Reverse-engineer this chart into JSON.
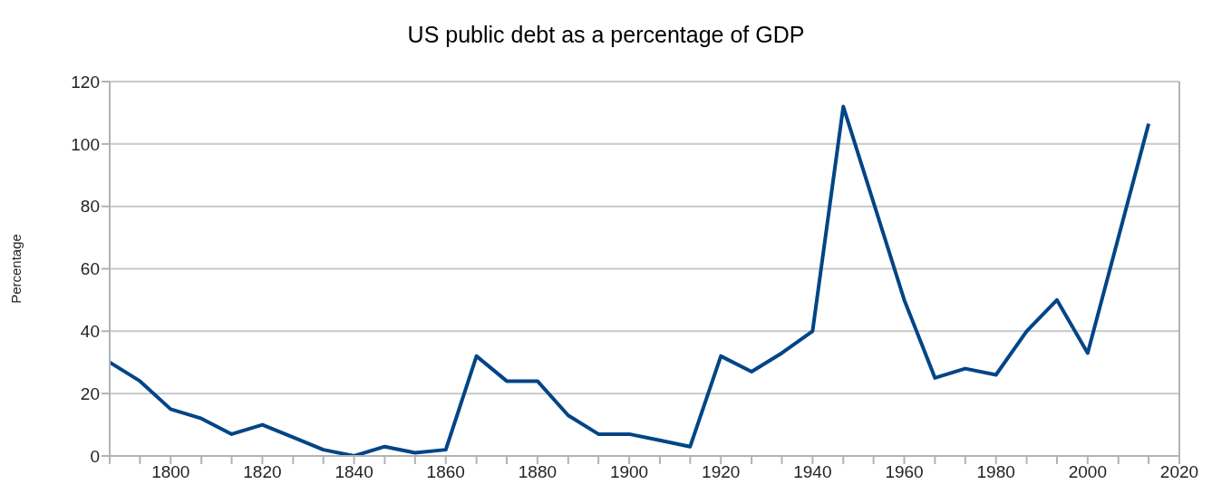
{
  "chart_data": {
    "type": "line",
    "title": "US public debt as a percentage of GDP",
    "ylabel": "Percentage",
    "x": [
      1786.7,
      1793.3,
      1800,
      1806.7,
      1813.3,
      1820,
      1826.7,
      1833.3,
      1840,
      1846.7,
      1853.3,
      1860,
      1866.7,
      1873.3,
      1880,
      1886.7,
      1893.3,
      1900,
      1906.7,
      1913.3,
      1920,
      1926.7,
      1933.3,
      1940,
      1946.7,
      1960,
      1966.7,
      1973.3,
      1980,
      1986.7,
      1993.3,
      2000,
      2013.3
    ],
    "series": [
      {
        "color": "#004586",
        "values": [
          30,
          24,
          15,
          12,
          7,
          10,
          6,
          2,
          0,
          3,
          1,
          2,
          32,
          24,
          24,
          13,
          7,
          7,
          5,
          3,
          32,
          27,
          33,
          40,
          112,
          50,
          25,
          28,
          26,
          40,
          50,
          33,
          106.5
        ]
      }
    ],
    "xlim": [
      1786.7,
      2020
    ],
    "xticks": [
      {
        "value": 1786.7,
        "label": null
      },
      {
        "value": 1793.3,
        "label": null
      },
      1800,
      {
        "value": 1806.7,
        "label": null
      },
      {
        "value": 1813.3,
        "label": null
      },
      1820,
      {
        "value": 1826.7,
        "label": null
      },
      {
        "value": 1833.3,
        "label": null
      },
      1840,
      {
        "value": 1846.7,
        "label": null
      },
      {
        "value": 1853.3,
        "label": null
      },
      1860,
      {
        "value": 1866.7,
        "label": null
      },
      {
        "value": 1873.3,
        "label": null
      },
      1880,
      {
        "value": 1886.7,
        "label": null
      },
      {
        "value": 1893.3,
        "label": null
      },
      1900,
      {
        "value": 1906.7,
        "label": null
      },
      {
        "value": 1913.3,
        "label": null
      },
      1920,
      {
        "value": 1926.7,
        "label": null
      },
      {
        "value": 1933.3,
        "label": null
      },
      1940,
      {
        "value": 1946.7,
        "label": null
      },
      {
        "value": 1953.3,
        "label": null
      },
      1960,
      {
        "value": 1966.7,
        "label": null
      },
      {
        "value": 1973.3,
        "label": null
      },
      1980,
      {
        "value": 1986.7,
        "label": null
      },
      {
        "value": 1993.3,
        "label": null
      },
      2000,
      {
        "value": 2006.7,
        "label": null
      },
      {
        "value": 2013.3,
        "label": null
      },
      2020
    ],
    "ylim": [
      0,
      120
    ],
    "yticks": [
      0,
      20,
      40,
      60,
      80,
      100,
      120
    ],
    "grid": "y",
    "legend": false,
    "marker": "none",
    "line_style": "solid"
  }
}
